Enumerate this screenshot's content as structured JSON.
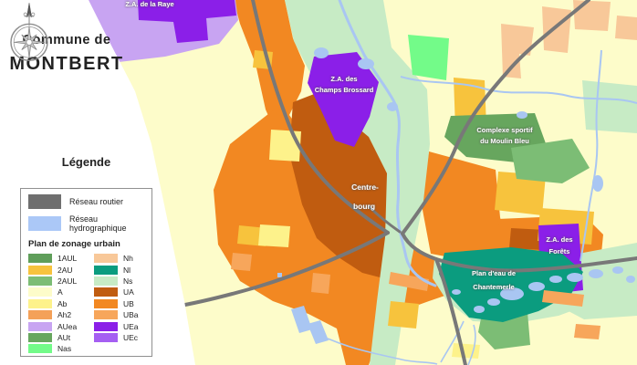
{
  "header": {
    "line1": "Commune de",
    "line2": "MONTBERT"
  },
  "legend": {
    "title": "Légende",
    "networks": [
      {
        "name": "roads",
        "label": "Réseau routier",
        "color": "#6f6f6f"
      },
      {
        "name": "hydrography",
        "label": "Réseau hydrographique",
        "color": "#abc8f7"
      }
    ],
    "zoning_title": "Plan de zonage urbain",
    "zones": [
      {
        "code": "1AUL",
        "color": "#5f9e5a"
      },
      {
        "code": "2AU",
        "color": "#f7c33d"
      },
      {
        "code": "2AUL",
        "color": "#7cbd75"
      },
      {
        "code": "A",
        "color": "#fdfcca"
      },
      {
        "code": "Ab",
        "color": "#fdf28b"
      },
      {
        "code": "Ah2",
        "color": "#f4a159"
      },
      {
        "code": "AUea",
        "color": "#c8a4f2"
      },
      {
        "code": "AUt",
        "color": "#67a65e"
      },
      {
        "code": "Nas",
        "color": "#73fb89"
      },
      {
        "code": "Nh",
        "color": "#f8c899"
      },
      {
        "code": "Nl",
        "color": "#0b9c7f"
      },
      {
        "code": "Ns",
        "color": "#c7ebc5"
      },
      {
        "code": "UA",
        "color": "#c05c10"
      },
      {
        "code": "UB",
        "color": "#f28822"
      },
      {
        "code": "UBa",
        "color": "#f7a65b"
      },
      {
        "code": "UEa",
        "color": "#8b1fe8"
      },
      {
        "code": "UEc",
        "color": "#a55ff2"
      }
    ]
  },
  "map": {
    "road_color": "#787878",
    "water_color": "#a9c6f2",
    "boundary_color": "#ffffff",
    "labels": {
      "za_raye": {
        "line1": "Z.A. de la Raye",
        "line2": ""
      },
      "champs_brossard": {
        "line1": "Z.A. des",
        "line2": "Champs Brossard"
      },
      "complexe_sportif": {
        "line1": "Complexe sportif",
        "line2": "du Moulin Bleu"
      },
      "centre_bourg": {
        "line1": "Centre-",
        "line2": "bourg"
      },
      "za_forets": {
        "line1": "Z.A. des",
        "line2": "Forêts"
      },
      "plan_eau": {
        "line1": "Plan d'eau de",
        "line2": "Chantemerle"
      }
    }
  }
}
